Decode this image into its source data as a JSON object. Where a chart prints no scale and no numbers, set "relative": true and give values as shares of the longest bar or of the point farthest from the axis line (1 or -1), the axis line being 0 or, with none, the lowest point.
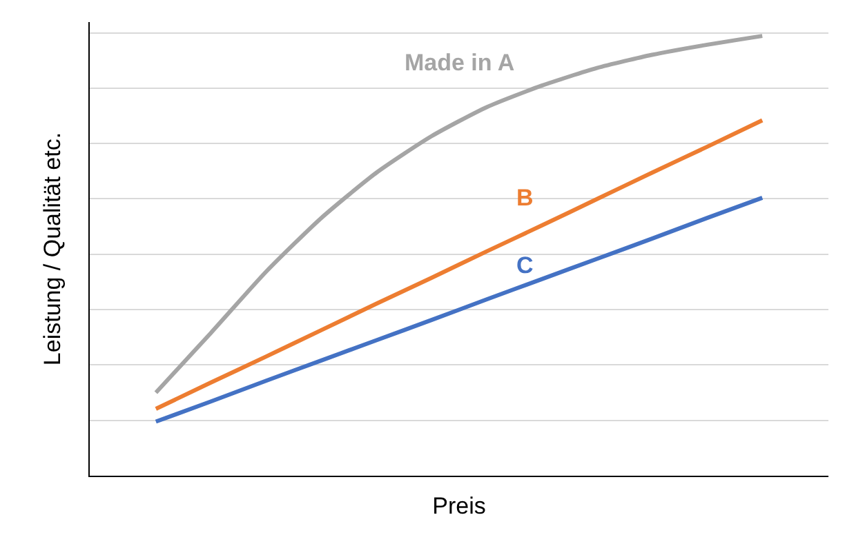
{
  "chart_data": {
    "type": "line",
    "relative": true,
    "xlabel": "Preis",
    "ylabel": "Leistung / Qualität etc.",
    "grid": "y",
    "legend": false,
    "tick_labels": false,
    "marker": "none",
    "line_style": "solid",
    "categories": [
      null,
      null,
      null,
      null,
      null,
      null,
      null,
      null,
      null,
      null,
      null,
      null
    ],
    "series": [
      {
        "name": "Made in A",
        "color": "#a5a5a5",
        "values": [
          0.189,
          0.325,
          0.464,
          0.586,
          0.689,
          0.772,
          0.838,
          0.887,
          0.927,
          0.957,
          0.98,
          1.0
        ]
      },
      {
        "name": "B",
        "color": "#ed7d31",
        "values": [
          0.152,
          0.212,
          0.271,
          0.331,
          0.391,
          0.45,
          0.51,
          0.569,
          0.629,
          0.689,
          0.748,
          0.808
        ]
      },
      {
        "name": "C",
        "color": "#4472c4",
        "values": [
          0.123,
          0.169,
          0.216,
          0.262,
          0.308,
          0.354,
          0.401,
          0.447,
          0.493,
          0.539,
          0.586,
          0.632
        ]
      }
    ]
  }
}
